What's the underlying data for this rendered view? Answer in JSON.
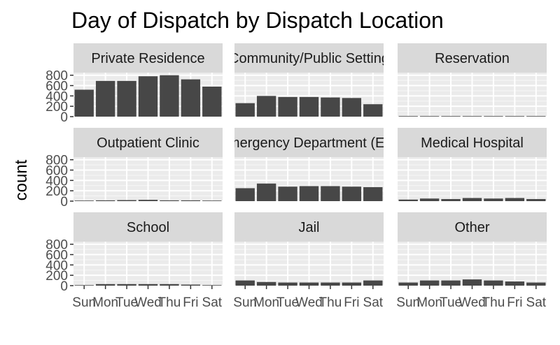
{
  "chart_data": {
    "type": "bar",
    "title": "Day of Dispatch by Dispatch Location",
    "xlabel": "",
    "ylabel": "count",
    "ylim": [
      0,
      850
    ],
    "yticks": [
      0,
      200,
      400,
      600,
      800
    ],
    "categories": [
      "Sun",
      "Mon",
      "Tue",
      "Wed",
      "Thu",
      "Fri",
      "Sat"
    ],
    "bar_color": "#474747",
    "panel_background": "#ebebeb",
    "strip_background": "#d9d9d9",
    "grid": true,
    "facets": [
      {
        "label": "Private Residence",
        "values": [
          520,
          690,
          690,
          780,
          800,
          720,
          580
        ]
      },
      {
        "label": "Community/Public Setting",
        "values": [
          260,
          400,
          380,
          380,
          370,
          360,
          240
        ]
      },
      {
        "label": "Reservation",
        "values": [
          10,
          10,
          10,
          10,
          10,
          10,
          10
        ]
      },
      {
        "label": "Outpatient Clinic",
        "values": [
          10,
          15,
          20,
          25,
          15,
          15,
          10
        ]
      },
      {
        "label": "Emergency Department (ED)",
        "values": [
          250,
          340,
          280,
          290,
          290,
          280,
          270
        ]
      },
      {
        "label": "Medical Hospital",
        "values": [
          30,
          50,
          40,
          60,
          50,
          60,
          40
        ]
      },
      {
        "label": "School",
        "values": [
          5,
          30,
          30,
          30,
          30,
          20,
          5
        ]
      },
      {
        "label": "Jail",
        "values": [
          100,
          70,
          60,
          60,
          60,
          60,
          100
        ]
      },
      {
        "label": "Other",
        "values": [
          60,
          100,
          100,
          120,
          100,
          80,
          60
        ]
      }
    ]
  }
}
